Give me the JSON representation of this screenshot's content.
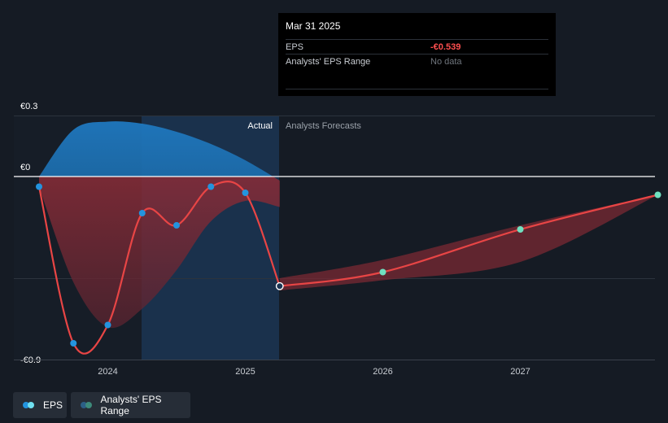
{
  "colors": {
    "background": "#151b24",
    "eps_line": "#e84545",
    "actual_point": "#2394df",
    "forecast_point": "#70e0c0",
    "range_actual_top": "#1a6aa8",
    "range_actual_bottom": "#8c2a33",
    "range_forecast": "#7a2a33",
    "actual_region": "#1b3553"
  },
  "tooltip": {
    "date": "Mar 31 2025",
    "eps_label": "EPS",
    "eps_value": "-€0.539",
    "range_label": "Analysts' EPS Range",
    "range_value": "No data"
  },
  "section_labels": {
    "actual": "Actual",
    "forecasts": "Analysts Forecasts"
  },
  "legend": [
    {
      "label": "EPS",
      "icon": "eps-legend-icon"
    },
    {
      "label": "Analysts' EPS Range",
      "icon": "range-legend-icon"
    }
  ],
  "chart_data": {
    "type": "line",
    "title": "",
    "xlabel": "",
    "ylabel": "",
    "y_ticks": [
      {
        "value": 0.3,
        "label": "€0.3"
      },
      {
        "value": 0,
        "label": "€0"
      },
      {
        "value": -0.9,
        "label": "-€0.9"
      }
    ],
    "x_ticks": [
      {
        "value": 2024.0,
        "label": "2024"
      },
      {
        "value": 2025.0,
        "label": "2025"
      },
      {
        "value": 2026.0,
        "label": "2026"
      },
      {
        "value": 2027.0,
        "label": "2027"
      }
    ],
    "xlim": [
      2023.25,
      2028.0
    ],
    "ylim": [
      -0.9,
      0.3
    ],
    "gridlines_y": [
      0.3,
      0,
      -0.5,
      -0.9
    ],
    "divider_x": 2025.25,
    "series": [
      {
        "name": "EPS",
        "segment": "actual",
        "points": [
          {
            "x": 2023.5,
            "y": -0.05
          },
          {
            "x": 2023.75,
            "y": -0.82
          },
          {
            "x": 2024.0,
            "y": -0.73
          },
          {
            "x": 2024.25,
            "y": -0.18
          },
          {
            "x": 2024.5,
            "y": -0.24
          },
          {
            "x": 2024.75,
            "y": -0.05
          },
          {
            "x": 2025.0,
            "y": -0.08
          },
          {
            "x": 2025.25,
            "y": -0.539
          }
        ]
      },
      {
        "name": "EPS",
        "segment": "forecast",
        "points": [
          {
            "x": 2025.25,
            "y": -0.539
          },
          {
            "x": 2026.0,
            "y": -0.47
          },
          {
            "x": 2027.0,
            "y": -0.26
          },
          {
            "x": 2028.0,
            "y": -0.09
          }
        ]
      }
    ],
    "range_actual": {
      "x": [
        2023.5,
        2023.75,
        2024.0,
        2024.25,
        2024.5,
        2024.75,
        2025.0,
        2025.25
      ],
      "upper": [
        0.0,
        0.23,
        0.27,
        0.26,
        0.22,
        0.16,
        0.08,
        -0.02
      ],
      "lower": [
        -0.05,
        -0.52,
        -0.74,
        -0.65,
        -0.46,
        -0.22,
        -0.12,
        -0.15
      ]
    },
    "range_forecast": {
      "x": [
        2025.25,
        2026.0,
        2027.0,
        2028.0
      ],
      "upper": [
        -0.5,
        -0.41,
        -0.24,
        -0.09
      ],
      "lower": [
        -0.56,
        -0.51,
        -0.42,
        -0.09
      ]
    }
  }
}
